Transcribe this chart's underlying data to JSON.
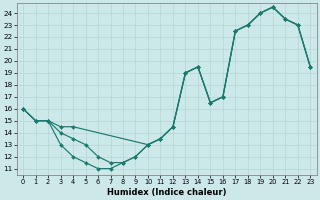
{
  "xlabel": "Humidex (Indice chaleur)",
  "bg_color": "#cce8e8",
  "grid_color": "#b8d8d8",
  "line_color": "#1a7a6e",
  "xlim": [
    -0.5,
    23.5
  ],
  "ylim": [
    10.5,
    24.8
  ],
  "xticks": [
    0,
    1,
    2,
    3,
    4,
    5,
    6,
    7,
    8,
    9,
    10,
    11,
    12,
    13,
    14,
    15,
    16,
    17,
    18,
    19,
    20,
    21,
    22,
    23
  ],
  "yticks": [
    11,
    12,
    13,
    14,
    15,
    16,
    17,
    18,
    19,
    20,
    21,
    22,
    23,
    24
  ],
  "line1": {
    "x": [
      0,
      1,
      2,
      3,
      4,
      10,
      11,
      12,
      13,
      14,
      15,
      16,
      17,
      18,
      19,
      20,
      21,
      22,
      23
    ],
    "y": [
      16,
      15,
      15,
      14.5,
      14.5,
      13,
      13.5,
      14.5,
      19,
      19.5,
      16.5,
      17,
      22.5,
      23,
      24,
      24.5,
      23.5,
      23,
      19.5
    ]
  },
  "line2": {
    "x": [
      0,
      1,
      2,
      3,
      4,
      5,
      6,
      7,
      8,
      9,
      10,
      11,
      12,
      13,
      14,
      15,
      16,
      17,
      18,
      19,
      20,
      21,
      22,
      23
    ],
    "y": [
      16,
      15,
      15,
      13,
      12,
      11.5,
      11,
      11,
      11.5,
      12,
      13,
      13.5,
      14.5,
      19,
      19.5,
      16.5,
      17,
      22.5,
      23,
      24,
      24.5,
      23.5,
      23,
      19.5
    ]
  },
  "line3": {
    "x": [
      0,
      1,
      2,
      3,
      4,
      5,
      6,
      7,
      8,
      9,
      10,
      11,
      12,
      13,
      14,
      15,
      16,
      17,
      18,
      19,
      20,
      21,
      22,
      23
    ],
    "y": [
      16,
      15,
      15,
      14,
      13.5,
      13,
      12,
      11.5,
      11.5,
      12,
      13,
      13.5,
      14.5,
      19,
      19.5,
      16.5,
      17,
      22.5,
      23,
      24,
      24.5,
      23.5,
      23,
      19.5
    ]
  },
  "figsize": [
    3.2,
    2.0
  ],
  "dpi": 100
}
